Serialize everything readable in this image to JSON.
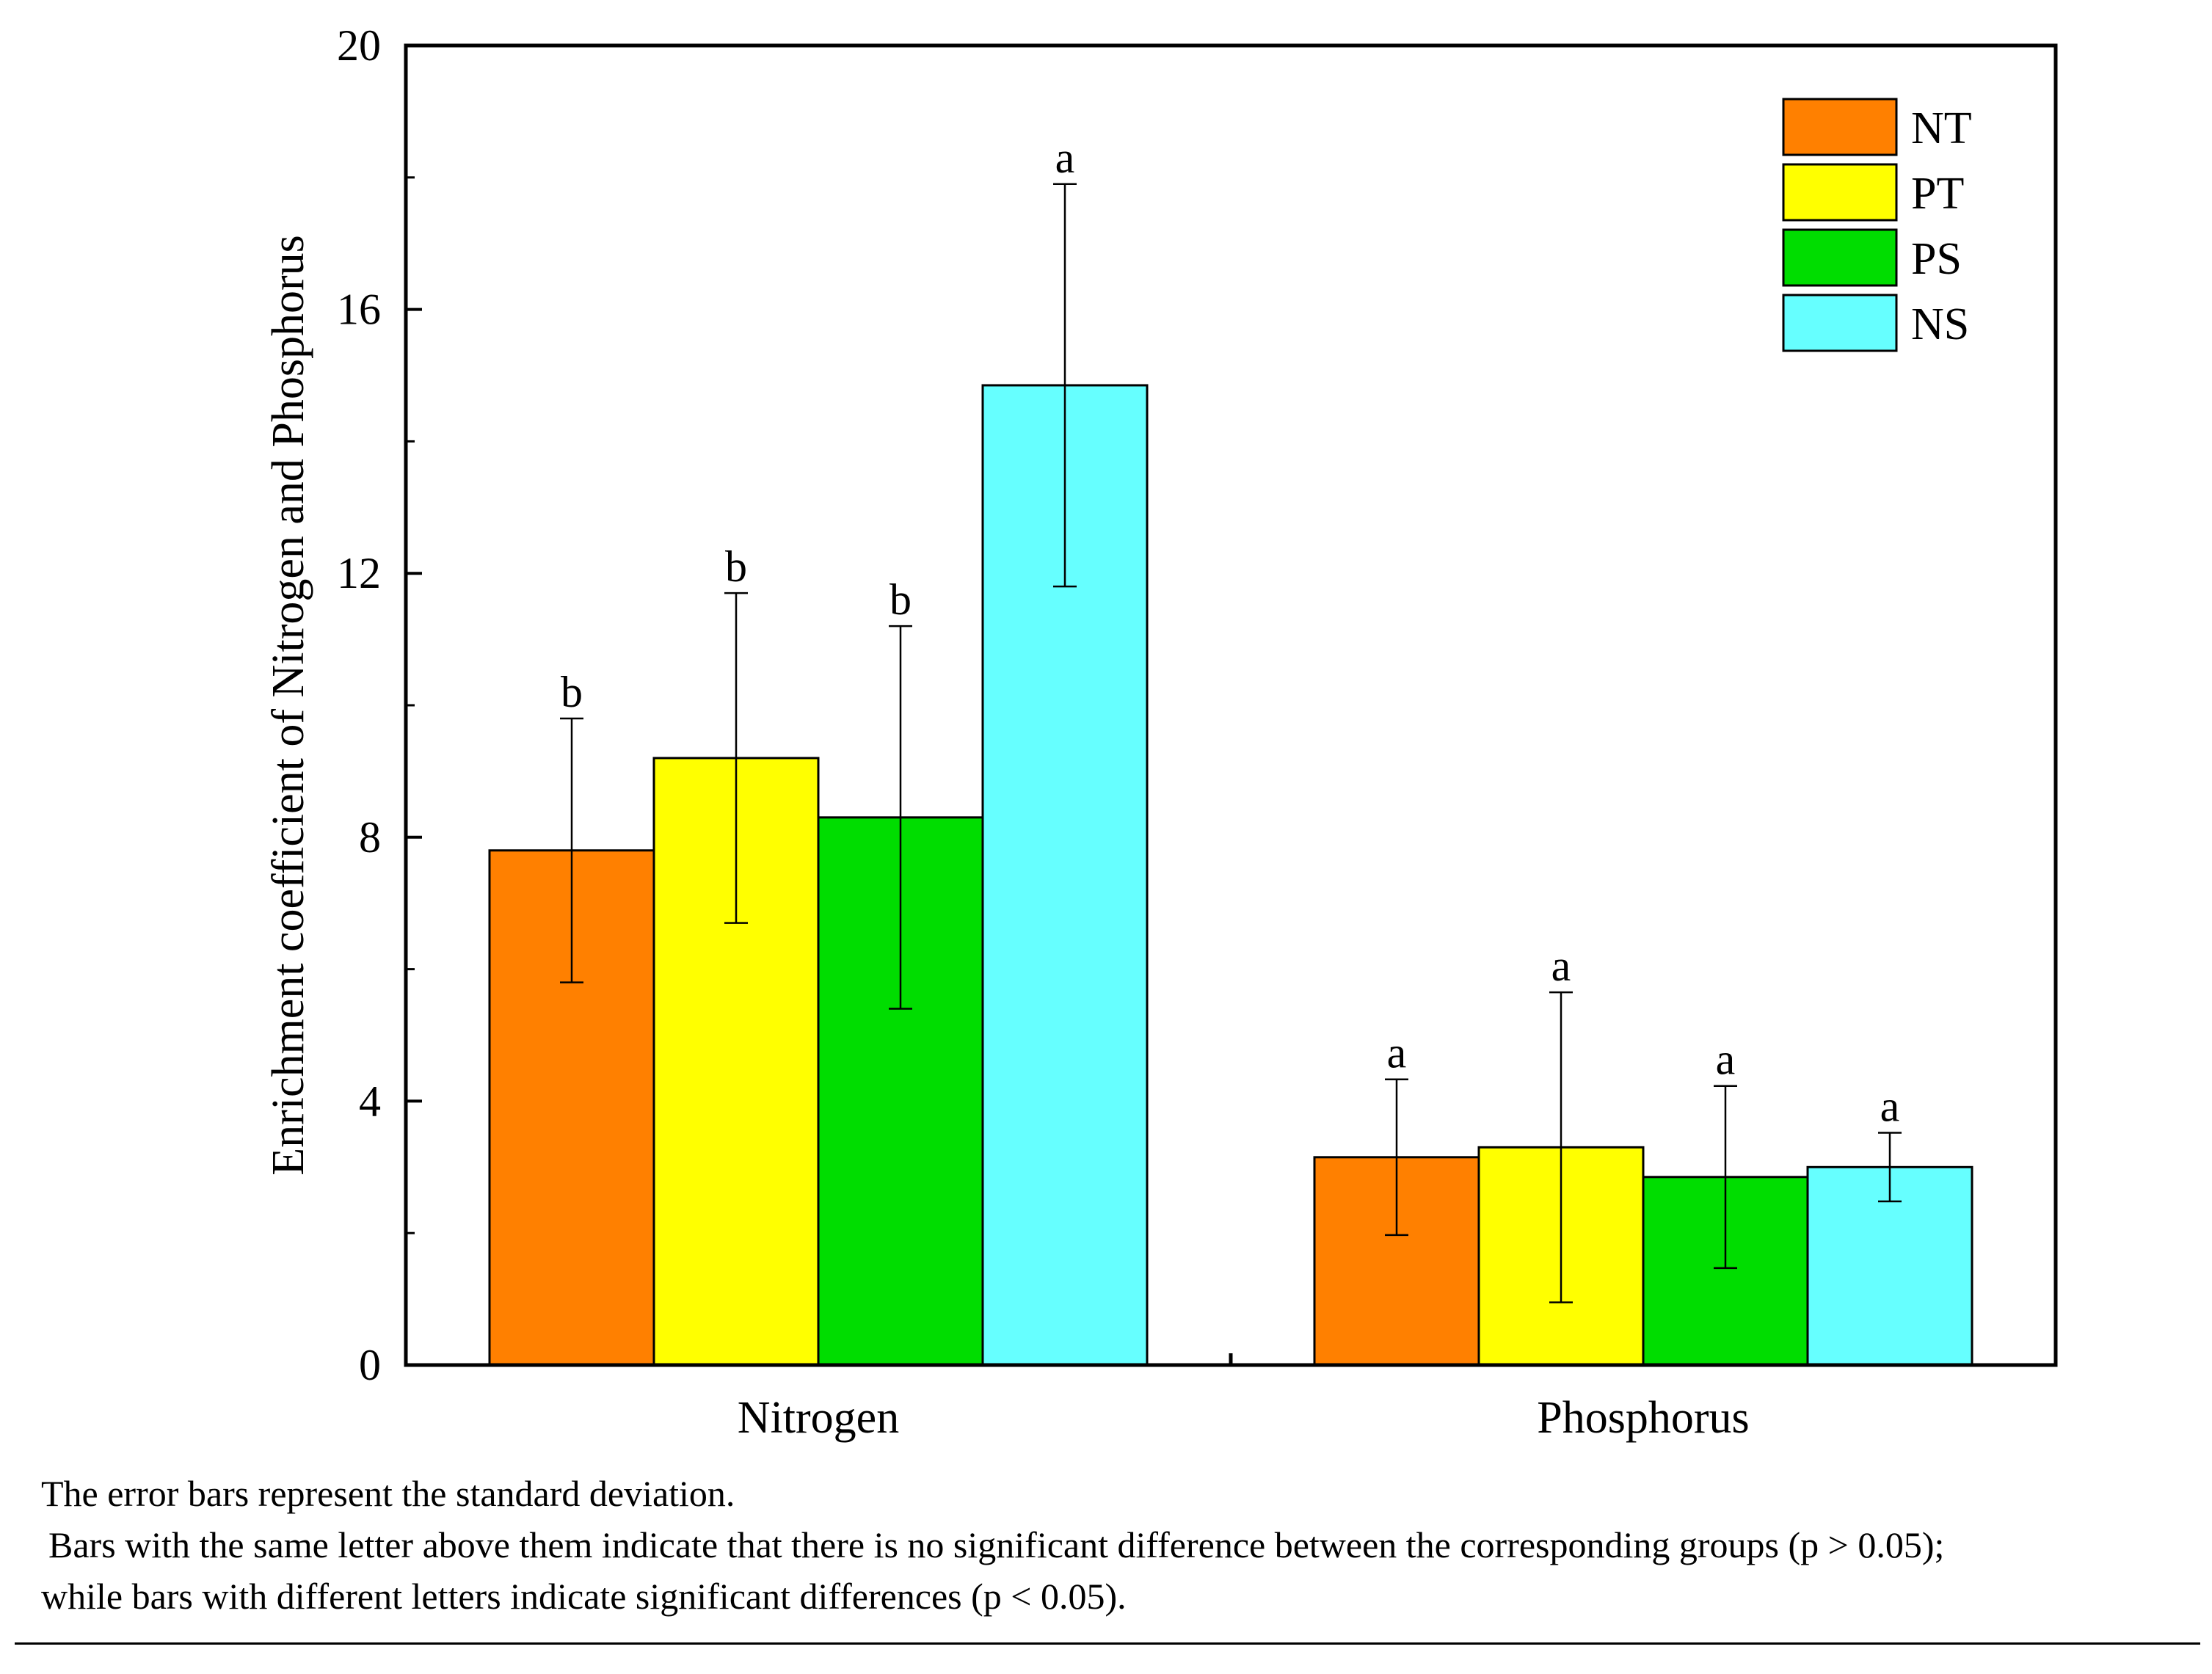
{
  "chart_data": {
    "type": "bar",
    "ylabel": "Enrichment coefficient of Nitrogen and Phosphorus",
    "xlabel": "",
    "ylim": [
      0,
      20
    ],
    "yticks": [
      "0",
      "4",
      "8",
      "12",
      "16",
      "20"
    ],
    "categories": [
      "Nitrogen",
      "Phosphorus"
    ],
    "legend_position": "top-right",
    "grid": false,
    "series": [
      {
        "name": "NT",
        "color": "#FF8000",
        "values": [
          7.8,
          3.15
        ],
        "errors": [
          2.0,
          1.18
        ],
        "significance": [
          "b",
          "a"
        ]
      },
      {
        "name": "PT",
        "color": "#FFFF00",
        "values": [
          9.2,
          3.3
        ],
        "errors": [
          2.5,
          2.35
        ],
        "significance": [
          "b",
          "a"
        ]
      },
      {
        "name": "PS",
        "color": "#00DD00",
        "values": [
          8.3,
          2.85
        ],
        "errors": [
          2.9,
          1.38
        ],
        "significance": [
          "b",
          "a"
        ]
      },
      {
        "name": "NS",
        "color": "#66FFFF",
        "values": [
          14.85,
          3.0
        ],
        "errors": [
          3.05,
          0.52
        ],
        "significance": [
          "a",
          "a"
        ]
      }
    ]
  },
  "notes": {
    "line1": "The error bars represent the standard deviation.",
    "line2": "Bars with the same letter above them indicate that there is no significant difference between the corresponding groups (p > 0.05);",
    "line3": "while bars with different letters indicate significant differences (p < 0.05)."
  }
}
